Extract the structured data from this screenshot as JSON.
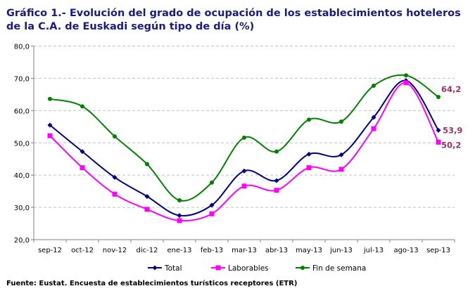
{
  "title": "Gráfico 1.-  Evolución del grado de ocupación de los establecimientos hoteleros de la C.A. de Euskadi según tipo de día (%)",
  "source": "Fuente: Eustat. Encuesta de establecimientos turísticos receptores (ETR)",
  "chart_data": {
    "type": "line",
    "title": "Gráfico 1.-  Evolución del grado de ocupación de los establecimientos hoteleros de la C.A. de Euskadi según tipo de día (%)",
    "xlabel": "",
    "ylabel": "",
    "categories": [
      "sep-12",
      "oct-12",
      "nov-12",
      "dic-12",
      "ene-13",
      "feb-13",
      "mar-13",
      "abr-13",
      "may-13",
      "jun-13",
      "jul-13",
      "ago-13",
      "sep-13"
    ],
    "ylim": [
      20,
      80
    ],
    "yticks": [
      "20,0",
      "30,0",
      "40,0",
      "50,0",
      "60,0",
      "70,0",
      "80,0"
    ],
    "grid": true,
    "legend": "bottom",
    "series": [
      {
        "name": "Total",
        "color": "#000080",
        "marker": "diamond",
        "values": [
          55.5,
          47.3,
          39.3,
          33.4,
          27.5,
          30.7,
          41.3,
          38.3,
          46.5,
          46.3,
          57.9,
          69.3,
          53.9
        ],
        "end_label": "53,9"
      },
      {
        "name": "Laborables",
        "color": "#FF00FF",
        "marker": "square",
        "values": [
          52.2,
          42.3,
          34.1,
          29.4,
          25.9,
          28.0,
          36.6,
          35.3,
          42.3,
          41.8,
          54.4,
          68.6,
          50.2
        ],
        "end_label": "50,2"
      },
      {
        "name": "Fin de semana",
        "color": "#008000",
        "marker": "circle",
        "values": [
          63.6,
          61.3,
          52.0,
          43.4,
          32.2,
          37.7,
          51.6,
          47.3,
          57.2,
          56.6,
          67.7,
          70.9,
          64.2
        ],
        "end_label": "64,2"
      }
    ]
  }
}
